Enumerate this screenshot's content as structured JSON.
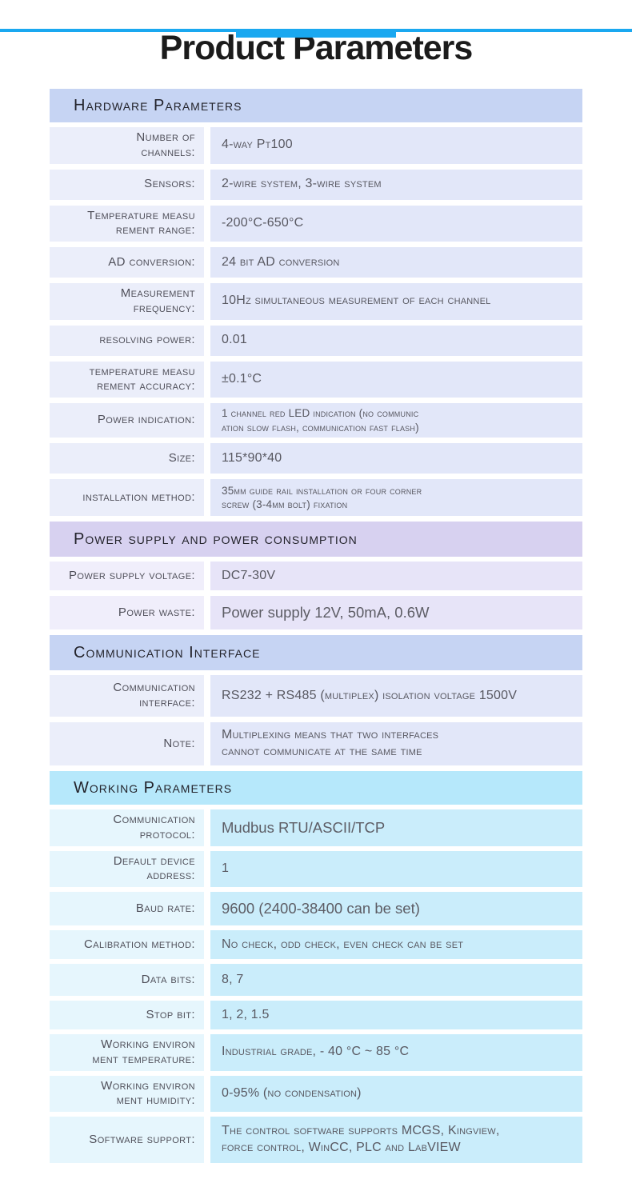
{
  "title": "Product Parameters",
  "colors": {
    "top_bar": "#1aa8f0",
    "hardware_header_bg": "#c6d4f3",
    "power_header_bg": "#d7d1f0",
    "communication_header_bg": "#c6d4f3",
    "working_header_bg": "#b6e8fb",
    "blue_label_bg": "#ebeefa",
    "blue_value_bg": "#e2e7f9",
    "purple_label_bg": "#f0eefb",
    "purple_value_bg": "#e7e4f8",
    "cyan_label_bg": "#e6f6fd",
    "cyan_value_bg": "#caedfb"
  },
  "sections": [
    {
      "title": "Hardware Parameters",
      "rows": [
        {
          "label": "Number of\nchannels:",
          "value": "4-way Pt100"
        },
        {
          "label": "Sensors:",
          "value": "2-wire system, 3-wire system"
        },
        {
          "label": "Temperature measu\nrement range:",
          "value": "-200°C-650°C"
        },
        {
          "label": "AD conversion:",
          "value": "24 bit AD conversion"
        },
        {
          "label": "Measurement\nfrequency:",
          "value": "10Hz simultaneous measurement of each channel"
        },
        {
          "label": "resolving power:",
          "value": "0.01"
        },
        {
          "label": "temperature measu\nrement accuracy:",
          "value": "±0.1°C"
        },
        {
          "label": "Power indication:",
          "value": "1 channel red LED indication (no communic\nation slow flash, communication fast flash)"
        },
        {
          "label": "Size:",
          "value": "115*90*40"
        },
        {
          "label": "installation method:",
          "value": "35mm guide rail installation or four corner\nscrew (3-4mm bolt) fixation"
        }
      ]
    },
    {
      "title": "Power supply and power consumption",
      "rows": [
        {
          "label": "Power supply voltage:",
          "value": "DC7-30V"
        },
        {
          "label": "Power waste:",
          "value": "Power supply 12V, 50mA, 0.6W"
        }
      ]
    },
    {
      "title": "Communication Interface",
      "rows": [
        {
          "label": "Communication\ninterface:",
          "value": "RS232 + RS485 (multiplex) isolation voltage 1500V"
        },
        {
          "label": "Note:",
          "value": "Multiplexing means that two interfaces\ncannot communicate at the same time"
        }
      ]
    },
    {
      "title": "Working Parameters",
      "rows": [
        {
          "label": "Communication\nprotocol:",
          "value": "Mudbus RTU/ASCII/TCP"
        },
        {
          "label": "Default device\naddress:",
          "value": "1"
        },
        {
          "label": "Baud rate:",
          "value": "9600 (2400-38400 can be set)"
        },
        {
          "label": "Calibration method:",
          "value": "No check, odd check, even check can be set"
        },
        {
          "label": "Data bits:",
          "value": "8, 7"
        },
        {
          "label": "Stop bit:",
          "value": "1, 2, 1.5"
        },
        {
          "label": "Working environ\nment temperature:",
          "value": "Industrial grade, - 40 °C ~ 85 °C"
        },
        {
          "label": "Working environ\nment humidity:",
          "value": "0-95% (no condensation)"
        },
        {
          "label": "Software support:",
          "value": "The control software supports MCGS, Kingview,\nforce control, WinCC, PLC and LabVIEW"
        }
      ]
    }
  ]
}
